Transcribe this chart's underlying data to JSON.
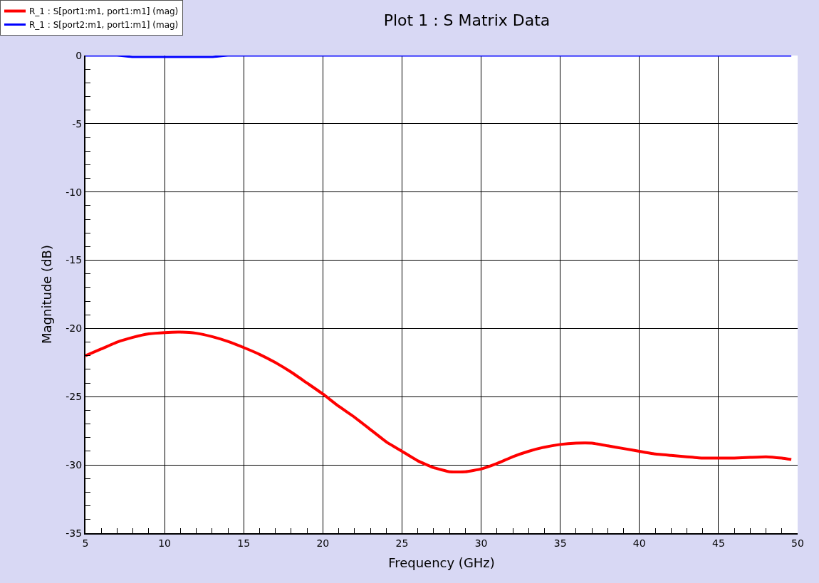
{
  "chart_data": {
    "type": "line",
    "title": "Plot 1 : S Matrix Data",
    "xlabel": "Frequency (GHz)",
    "ylabel": "Magnitude (dB)",
    "x": [
      5,
      6,
      7,
      8,
      9,
      10,
      11,
      12,
      13,
      14,
      15,
      16,
      17,
      18,
      19,
      20,
      21,
      22,
      23,
      24,
      25,
      26,
      27,
      28,
      29,
      30,
      31,
      32,
      33,
      34,
      35,
      36,
      37,
      38,
      39,
      40,
      41,
      42,
      43,
      44,
      45,
      46,
      47,
      48,
      49,
      49.6
    ],
    "series": [
      {
        "name": "R_1 : S[port1:m1, port1:m1] (mag)",
        "color": "#ff0000",
        "values": [
          -22.0,
          -21.5,
          -21.0,
          -20.65,
          -20.4,
          -20.3,
          -20.27,
          -20.35,
          -20.6,
          -20.95,
          -21.4,
          -21.9,
          -22.5,
          -23.2,
          -24.0,
          -24.8,
          -25.7,
          -26.5,
          -27.4,
          -28.3,
          -29.0,
          -29.7,
          -30.2,
          -30.5,
          -30.5,
          -30.3,
          -29.9,
          -29.4,
          -29.0,
          -28.7,
          -28.5,
          -28.4,
          -28.4,
          -28.6,
          -28.8,
          -29.0,
          -29.2,
          -29.3,
          -29.4,
          -29.5,
          -29.5,
          -29.5,
          -29.45,
          -29.4,
          -29.5,
          -29.6
        ]
      },
      {
        "name": "R_1 : S[port2:m1, port1:m1] (mag)",
        "color": "#0000ff",
        "values": [
          0,
          0,
          0,
          -0.1,
          -0.1,
          -0.1,
          -0.1,
          -0.1,
          -0.1,
          0,
          0,
          0,
          0,
          0,
          0,
          0,
          0,
          0,
          0,
          0,
          0,
          0,
          0,
          0,
          0,
          0,
          0,
          0,
          0,
          0,
          0,
          0,
          0,
          0,
          0,
          0,
          0,
          0,
          0,
          0,
          0,
          0,
          0,
          0,
          0,
          0
        ]
      }
    ],
    "xlim": [
      5,
      50
    ],
    "xticks": [
      5,
      {
        "value": 6,
        "label": null
      },
      {
        "value": 7,
        "label": null
      },
      {
        "value": 8,
        "label": null
      },
      {
        "value": 9,
        "label": null
      },
      10,
      {
        "value": 11,
        "label": null
      },
      {
        "value": 12,
        "label": null
      },
      {
        "value": 13,
        "label": null
      },
      {
        "value": 14,
        "label": null
      },
      15,
      {
        "value": 16,
        "label": null
      },
      {
        "value": 17,
        "label": null
      },
      {
        "value": 18,
        "label": null
      },
      {
        "value": 19,
        "label": null
      },
      20,
      {
        "value": 21,
        "label": null
      },
      {
        "value": 22,
        "label": null
      },
      {
        "value": 23,
        "label": null
      },
      {
        "value": 24,
        "label": null
      },
      25,
      {
        "value": 26,
        "label": null
      },
      {
        "value": 27,
        "label": null
      },
      {
        "value": 28,
        "label": null
      },
      {
        "value": 29,
        "label": null
      },
      30,
      {
        "value": 31,
        "label": null
      },
      {
        "value": 32,
        "label": null
      },
      {
        "value": 33,
        "label": null
      },
      {
        "value": 34,
        "label": null
      },
      35,
      {
        "value": 36,
        "label": null
      },
      {
        "value": 37,
        "label": null
      },
      {
        "value": 38,
        "label": null
      },
      {
        "value": 39,
        "label": null
      },
      40,
      {
        "value": 41,
        "label": null
      },
      {
        "value": 42,
        "label": null
      },
      {
        "value": 43,
        "label": null
      },
      {
        "value": 44,
        "label": null
      },
      45,
      {
        "value": 46,
        "label": null
      },
      {
        "value": 47,
        "label": null
      },
      {
        "value": 48,
        "label": null
      },
      {
        "value": 49,
        "label": null
      },
      50
    ],
    "ylim": [
      -35,
      0
    ],
    "yticks": [
      -35,
      {
        "value": -34,
        "label": null
      },
      {
        "value": -33,
        "label": null
      },
      {
        "value": -32,
        "label": null
      },
      {
        "value": -31,
        "label": null
      },
      -30,
      {
        "value": -29,
        "label": null
      },
      {
        "value": -28,
        "label": null
      },
      {
        "value": -27,
        "label": null
      },
      {
        "value": -26,
        "label": null
      },
      -25,
      {
        "value": -24,
        "label": null
      },
      {
        "value": -23,
        "label": null
      },
      {
        "value": -22,
        "label": null
      },
      {
        "value": -21,
        "label": null
      },
      -20,
      {
        "value": -19,
        "label": null
      },
      {
        "value": -18,
        "label": null
      },
      {
        "value": -17,
        "label": null
      },
      {
        "value": -16,
        "label": null
      },
      -15,
      {
        "value": -14,
        "label": null
      },
      {
        "value": -13,
        "label": null
      },
      {
        "value": -12,
        "label": null
      },
      {
        "value": -11,
        "label": null
      },
      -10,
      {
        "value": -9,
        "label": null
      },
      {
        "value": -8,
        "label": null
      },
      {
        "value": -7,
        "label": null
      },
      {
        "value": -6,
        "label": null
      },
      -5,
      {
        "value": -4,
        "label": null
      },
      {
        "value": -3,
        "label": null
      },
      {
        "value": -2,
        "label": null
      },
      {
        "value": -1,
        "label": null
      },
      0
    ],
    "grid": true,
    "legend": "top left",
    "marker": "none",
    "line_style": "solid"
  }
}
